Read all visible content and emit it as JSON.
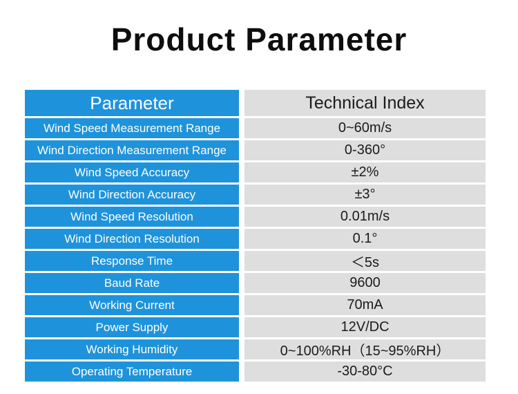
{
  "page": {
    "title": "Product Parameter"
  },
  "table": {
    "header": {
      "parameter": "Parameter",
      "technical_index": "Technical Index"
    },
    "rows": [
      {
        "parameter": "Wind Speed Measurement Range",
        "value": "0~60m/s"
      },
      {
        "parameter": "Wind Direction Measurement Range",
        "value": "0-360°"
      },
      {
        "parameter": "Wind Speed Accuracy",
        "value": "±2%"
      },
      {
        "parameter": "Wind Direction Accuracy",
        "value": "±3°"
      },
      {
        "parameter": "Wind Speed Resolution",
        "value": "0.01m/s"
      },
      {
        "parameter": "Wind Direction Resolution",
        "value": "0.1°"
      },
      {
        "parameter": "Response Time",
        "value": "＜5s"
      },
      {
        "parameter": "Baud Rate",
        "value": "9600"
      },
      {
        "parameter": "Working Current",
        "value": "70mA"
      },
      {
        "parameter": "Power Supply",
        "value": "12V/DC"
      },
      {
        "parameter": "Working Humidity",
        "value": "0~100%RH（15~95%RH）"
      },
      {
        "parameter": "Operating Temperature",
        "value": "-30-80°C"
      }
    ],
    "colors": {
      "accent_blue": "#1E93DB",
      "cell_gray": "#DEDEDE",
      "text_dark": "#1B1B1B"
    }
  }
}
